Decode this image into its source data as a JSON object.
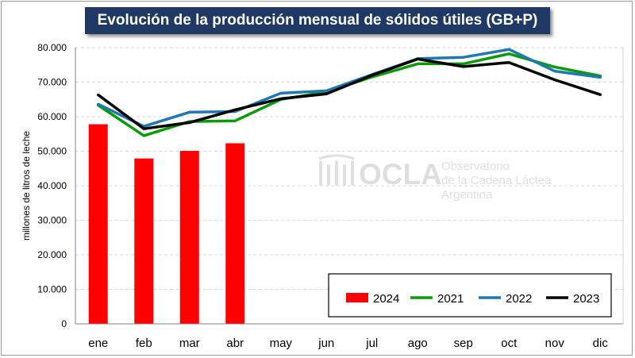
{
  "chart_data": {
    "type": "bar+line",
    "title": "Evolución de la producción mensual de sólidos útiles (GB+P)",
    "ylabel": "millones de litros de leche",
    "xlabel": "",
    "ylim": [
      0,
      80000
    ],
    "yticks": [
      "0",
      "10.000",
      "20.000",
      "30.000",
      "40.000",
      "50.000",
      "60.000",
      "70.000",
      "80.000"
    ],
    "categories": [
      "ene",
      "feb",
      "mar",
      "abr",
      "may",
      "jun",
      "jul",
      "ago",
      "sep",
      "oct",
      "nov",
      "dic"
    ],
    "grid": true,
    "legend_position": "bottom-right",
    "series": [
      {
        "name": "2024",
        "kind": "bar",
        "color": "#ff0000",
        "values": [
          57800,
          47900,
          50100,
          52300,
          null,
          null,
          null,
          null,
          null,
          null,
          null,
          null
        ]
      },
      {
        "name": "2021",
        "kind": "line",
        "color": "#0a9a0a",
        "values": [
          63300,
          54500,
          58600,
          58800,
          65000,
          67200,
          71500,
          75300,
          75300,
          78200,
          74400,
          71800
        ]
      },
      {
        "name": "2022",
        "kind": "line",
        "color": "#1f77b4",
        "values": [
          63600,
          57200,
          61300,
          61500,
          66800,
          67500,
          72200,
          76800,
          77200,
          79500,
          73200,
          71400
        ]
      },
      {
        "name": "2023",
        "kind": "line",
        "color": "#000000",
        "values": [
          66300,
          56500,
          58300,
          62000,
          65200,
          66600,
          72000,
          76700,
          74500,
          75700,
          70700,
          66400
        ]
      }
    ]
  },
  "watermark": {
    "brand": "OCLA",
    "line1": "Observatorio",
    "line2": "de la Cadena Láctea",
    "line3": "Argentina"
  }
}
